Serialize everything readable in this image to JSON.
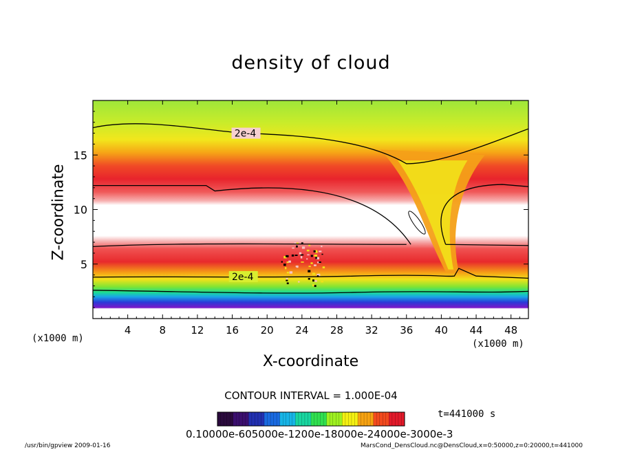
{
  "chart_data": {
    "type": "heatmap",
    "title": "density of cloud",
    "xlabel": "X-coordinate",
    "ylabel": "Z-coordinate",
    "x_unit_left": "(x1000 m)",
    "x_unit_right": "(x1000 m)",
    "xlim": [
      0,
      50
    ],
    "ylim": [
      0,
      20
    ],
    "xticks": [
      "4",
      "8",
      "12",
      "16",
      "20",
      "24",
      "28",
      "32",
      "36",
      "40",
      "44",
      "48"
    ],
    "yticks": [
      "5",
      "10",
      "15"
    ],
    "contour_labels": [
      "2e-4",
      "2e-4"
    ],
    "contour_interval": "CONTOUR INTERVAL = 1.000E-04",
    "time_label": "t=441000 s",
    "colorbar_label": "0.10000e-605000e-1200e-18000e-24000e-3000e-3",
    "colorbar_colors": [
      "#2a0a3c",
      "#3b0f6e",
      "#2230b0",
      "#1a6ae0",
      "#17b4e6",
      "#19d6a0",
      "#30e050",
      "#9ef020",
      "#f4f012",
      "#f6a212",
      "#f24a1e",
      "#e21a2a"
    ],
    "density_colors": [
      "#7a14c8",
      "#2a34d8",
      "#1aa2e6",
      "#1adc94",
      "#4ee43a",
      "#b4ea1c",
      "#f4e614",
      "#f69c14",
      "#f25228",
      "#e82a30",
      "#f26a6a",
      "#f8bcbc"
    ],
    "footer_left": "/usr/bin/gpview  2009-01-16",
    "footer_right": "MarsCond_DensCloud.nc@DensCloud,x=0:50000,z=0:20000,t=441000"
  }
}
